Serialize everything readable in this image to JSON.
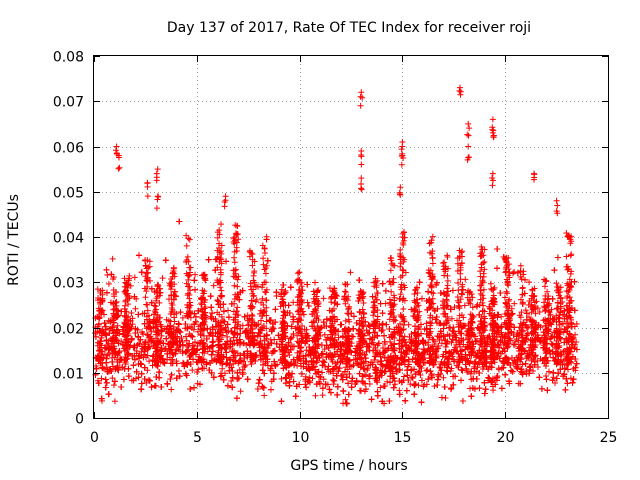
{
  "chart_data": {
    "type": "scatter",
    "title": "Day 137 of 2017, Rate Of TEC Index for receiver roji",
    "xlabel": "GPS time / hours",
    "ylabel": "ROTI / TECUs",
    "xlim": [
      0,
      25
    ],
    "ylim": [
      0,
      0.08
    ],
    "x_ticks": [
      0,
      5,
      10,
      15,
      20,
      25
    ],
    "x_tick_labels": [
      "0",
      "5",
      "10",
      "15",
      "20",
      "25"
    ],
    "y_ticks": [
      0,
      0.01,
      0.02,
      0.03,
      0.04,
      0.05,
      0.06,
      0.07,
      0.08
    ],
    "y_tick_labels": [
      "0",
      "0.01",
      "0.02",
      "0.03",
      "0.04",
      "0.05",
      "0.06",
      "0.07",
      "0.08"
    ],
    "grid": true,
    "marker": "plus",
    "color": "#ff0000",
    "series": [
      {
        "name": "ROTI",
        "description": "dense scatter of ROTI values from ~0.0 to 23.5 hours, bulk between 0.005 and 0.03 TECU/min",
        "notable_points": [
          {
            "x": 1.1,
            "y": 0.06
          },
          {
            "x": 1.2,
            "y": 0.058
          },
          {
            "x": 2.6,
            "y": 0.052
          },
          {
            "x": 3.1,
            "y": 0.055
          },
          {
            "x": 3.1,
            "y": 0.049
          },
          {
            "x": 6.4,
            "y": 0.049
          },
          {
            "x": 13.0,
            "y": 0.072
          },
          {
            "x": 13.0,
            "y": 0.059
          },
          {
            "x": 13.0,
            "y": 0.053
          },
          {
            "x": 15.0,
            "y": 0.061
          },
          {
            "x": 15.0,
            "y": 0.058
          },
          {
            "x": 14.9,
            "y": 0.051
          },
          {
            "x": 17.8,
            "y": 0.073
          },
          {
            "x": 18.2,
            "y": 0.065
          },
          {
            "x": 18.2,
            "y": 0.06
          },
          {
            "x": 19.4,
            "y": 0.066
          },
          {
            "x": 19.4,
            "y": 0.063
          },
          {
            "x": 19.4,
            "y": 0.054
          },
          {
            "x": 21.4,
            "y": 0.054
          },
          {
            "x": 22.5,
            "y": 0.048
          }
        ]
      }
    ]
  }
}
